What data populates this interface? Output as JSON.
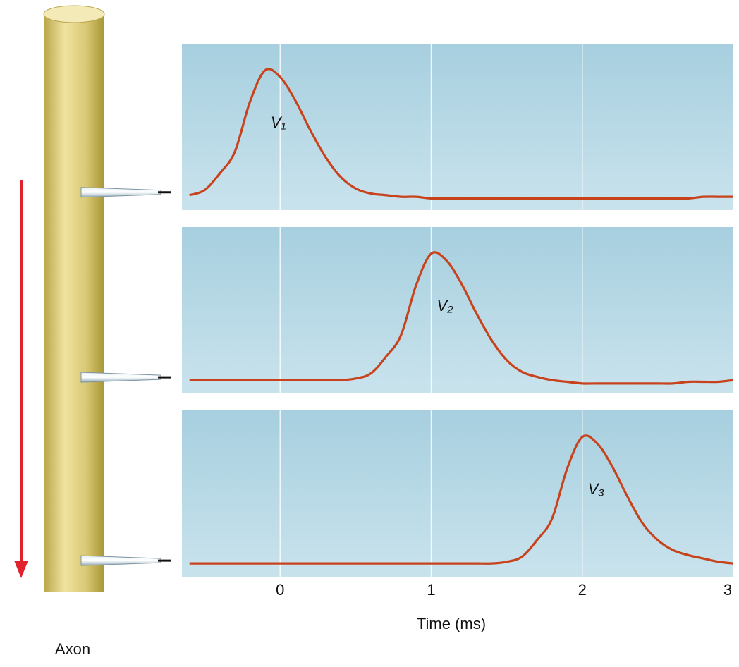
{
  "chart_data": {
    "type": "line",
    "x_label": "Time (ms)",
    "annotation": "Axon",
    "x": [
      -0.6,
      -0.5,
      -0.4,
      -0.3,
      -0.2,
      -0.1,
      0,
      0.1,
      0.2,
      0.3,
      0.4,
      0.5,
      0.6,
      0.7,
      0.8,
      0.9,
      1,
      1.1,
      1.2,
      1.3,
      1.4,
      1.5,
      1.6,
      1.7,
      1.8,
      1.9,
      2,
      2.1,
      2.2,
      2.3,
      2.4,
      2.5,
      2.6,
      2.7,
      2.8,
      2.9,
      3
    ],
    "xlim": [
      -0.65,
      3
    ],
    "xticks": [
      0,
      1,
      2,
      3
    ],
    "ylim": [
      0,
      100
    ],
    "grid": true,
    "series": [
      {
        "name": "V₁",
        "color": "#c8431c",
        "values": [
          9,
          12,
          22,
          35,
          65,
          84,
          80,
          66,
          48,
          32,
          20,
          13,
          10,
          9,
          8,
          8,
          7,
          7,
          7,
          7,
          7,
          7,
          7,
          7,
          7,
          7,
          7,
          7,
          7,
          7,
          7,
          7,
          7,
          7,
          8,
          8,
          8
        ]
      },
      {
        "name": "V₂",
        "color": "#c8431c",
        "values": [
          8,
          8,
          8,
          8,
          8,
          8,
          8,
          8,
          8,
          8,
          8,
          9,
          12,
          22,
          35,
          65,
          84,
          80,
          66,
          48,
          32,
          20,
          13,
          10,
          8,
          7,
          6,
          6,
          6,
          6,
          6,
          6,
          6,
          7,
          7,
          7,
          8
        ]
      },
      {
        "name": "V₃",
        "color": "#c8431c",
        "values": [
          8,
          8,
          8,
          8,
          8,
          8,
          8,
          8,
          8,
          8,
          8,
          8,
          8,
          8,
          8,
          8,
          8,
          8,
          8,
          8,
          8,
          9,
          12,
          22,
          35,
          65,
          84,
          80,
          66,
          48,
          32,
          22,
          16,
          13,
          11,
          9,
          8
        ]
      }
    ]
  }
}
